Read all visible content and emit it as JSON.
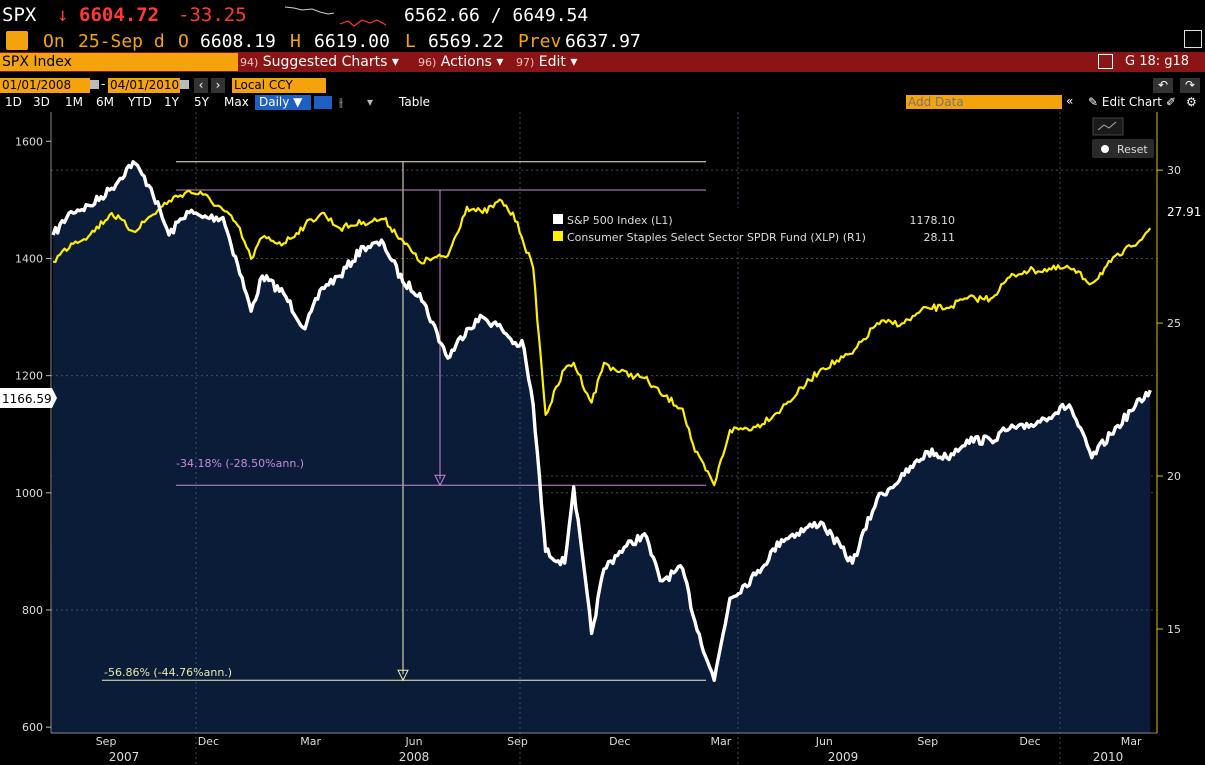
{
  "quote": {
    "ticker": "SPX",
    "arrow": "↓",
    "last": "6604.72",
    "change": "-33.25",
    "low_high": "6562.66 / 6649.54",
    "on_label": "On",
    "date": "25-Sep d",
    "open_label": "O",
    "open": "6608.19",
    "high_label": "H",
    "high": "6619.00",
    "low_label": "L",
    "low": "6569.22",
    "prev_label": "Prev",
    "prev": "6637.97"
  },
  "menubar": {
    "security": "SPX Index",
    "suggested_num": "94)",
    "suggested": "Suggested Charts",
    "actions_num": "96)",
    "actions": "Actions",
    "edit_num": "97)",
    "edit": "Edit",
    "page_id": "G 18: g18"
  },
  "toolbar": {
    "start_date": "01/01/2008",
    "end_date": "04/01/2010",
    "date_sep": "-",
    "currency": "Local CCY",
    "periods": [
      "1D",
      "3D",
      "1M",
      "6M",
      "YTD",
      "1Y",
      "5Y",
      "Max"
    ],
    "frequency": "Daily ▼",
    "table": "Table",
    "add_data_placeholder": "Add Data",
    "edit_chart": "Edit Chart",
    "reset": "Reset"
  },
  "colors": {
    "spx": "#ffffff",
    "xlp": "#ffef00",
    "area": "#0b1c38",
    "menubar": "#8b1414",
    "accent": "#f5a30c"
  },
  "chart_data": {
    "type": "line",
    "x_ticks": [
      "Sep",
      "Dec",
      "Mar",
      "Jun",
      "Sep",
      "Dec",
      "Mar",
      "Jun",
      "Sep",
      "Dec",
      "Mar"
    ],
    "years": [
      "2007",
      "2008",
      "2009",
      "2010"
    ],
    "left_axis": {
      "ticks": [
        600,
        800,
        1000,
        1200,
        1400,
        1600
      ],
      "ylim": [
        590,
        1650
      ],
      "current_label": "1166.59"
    },
    "right_axis": {
      "ticks": [
        15,
        20,
        25,
        30
      ],
      "ylim": [
        11.6,
        31.9
      ],
      "current_label": "27.91"
    },
    "legend": [
      {
        "label": "S&P 500 Index (L1)",
        "value": "1178.10"
      },
      {
        "label": "Consumer Staples Select Sector SPDR Fund (XLP) (R1)",
        "value": "28.11"
      }
    ],
    "annotations": {
      "spx_drawdown": "-56.86% (-44.76%ann.)",
      "xlp_drawdown": "-34.18% (-28.50%ann.)"
    },
    "series": [
      {
        "name": "S&P 500 Index (L1)",
        "axis": "left",
        "x": [
          "2007-07-30",
          "2007-08-15",
          "2007-09-01",
          "2007-09-20",
          "2007-10-09",
          "2007-10-25",
          "2007-11-10",
          "2007-11-26",
          "2007-12-10",
          "2007-12-28",
          "2008-01-10",
          "2008-01-22",
          "2008-02-01",
          "2008-02-20",
          "2008-03-10",
          "2008-03-25",
          "2008-04-10",
          "2008-05-01",
          "2008-05-19",
          "2008-06-05",
          "2008-06-20",
          "2008-07-15",
          "2008-08-01",
          "2008-08-15",
          "2008-09-01",
          "2008-09-15",
          "2008-09-19",
          "2008-09-29",
          "2008-10-10",
          "2008-10-27",
          "2008-11-04",
          "2008-11-20",
          "2008-12-01",
          "2008-12-15",
          "2009-01-06",
          "2009-01-20",
          "2009-02-09",
          "2009-02-20",
          "2009-03-09",
          "2009-03-23",
          "2009-04-15",
          "2009-05-08",
          "2009-06-12",
          "2009-07-10",
          "2009-08-01",
          "2009-08-25",
          "2009-09-15",
          "2009-10-02",
          "2009-10-20",
          "2009-11-10",
          "2009-11-27",
          "2009-12-10",
          "2010-01-19",
          "2010-02-08",
          "2010-02-25",
          "2010-03-15",
          "2010-04-01"
        ],
        "y": [
          1440,
          1480,
          1490,
          1520,
          1565,
          1520,
          1440,
          1480,
          1470,
          1470,
          1390,
          1310,
          1370,
          1340,
          1280,
          1350,
          1370,
          1420,
          1425,
          1360,
          1340,
          1230,
          1280,
          1300,
          1280,
          1250,
          1260,
          1150,
          900,
          880,
          1010,
          760,
          870,
          900,
          930,
          850,
          870,
          780,
          680,
          820,
          860,
          920,
          950,
          880,
          990,
          1030,
          1070,
          1060,
          1090,
          1090,
          1110,
          1110,
          1150,
          1060,
          1100,
          1140,
          1175
        ]
      },
      {
        "name": "Consumer Staples Select Sector SPDR Fund (XLP) (R1)",
        "axis": "right",
        "x": [
          "2007-07-30",
          "2007-08-15",
          "2007-09-01",
          "2007-09-20",
          "2007-10-09",
          "2007-10-25",
          "2007-11-10",
          "2007-11-26",
          "2007-12-10",
          "2007-12-28",
          "2008-01-10",
          "2008-01-22",
          "2008-02-01",
          "2008-02-20",
          "2008-03-10",
          "2008-03-25",
          "2008-04-10",
          "2008-05-01",
          "2008-05-19",
          "2008-06-05",
          "2008-06-20",
          "2008-07-15",
          "2008-08-01",
          "2008-08-15",
          "2008-09-01",
          "2008-09-15",
          "2008-09-19",
          "2008-09-29",
          "2008-10-10",
          "2008-10-27",
          "2008-11-04",
          "2008-11-20",
          "2008-12-01",
          "2008-12-15",
          "2009-01-06",
          "2009-01-20",
          "2009-02-09",
          "2009-02-20",
          "2009-03-09",
          "2009-03-23",
          "2009-04-15",
          "2009-05-08",
          "2009-06-12",
          "2009-07-10",
          "2009-08-01",
          "2009-08-25",
          "2009-09-15",
          "2009-10-02",
          "2009-10-20",
          "2009-11-10",
          "2009-11-27",
          "2009-12-10",
          "2010-01-19",
          "2010-02-08",
          "2010-02-25",
          "2010-03-15",
          "2010-04-01"
        ],
        "y": [
          27.0,
          27.6,
          27.9,
          28.6,
          28.0,
          28.5,
          29.0,
          29.3,
          29.2,
          28.7,
          28.2,
          27.1,
          27.8,
          27.6,
          28.2,
          28.6,
          28.1,
          28.3,
          28.4,
          27.7,
          27.0,
          27.2,
          28.8,
          28.6,
          29.0,
          28.3,
          27.8,
          26.8,
          22.0,
          23.5,
          23.7,
          22.4,
          23.7,
          23.4,
          23.2,
          22.7,
          22.2,
          20.8,
          19.7,
          21.5,
          21.6,
          22.2,
          23.5,
          24.0,
          25.0,
          25.0,
          25.5,
          25.5,
          25.8,
          25.8,
          26.5,
          26.7,
          26.8,
          26.3,
          27.0,
          27.5,
          28.1
        ]
      }
    ]
  }
}
